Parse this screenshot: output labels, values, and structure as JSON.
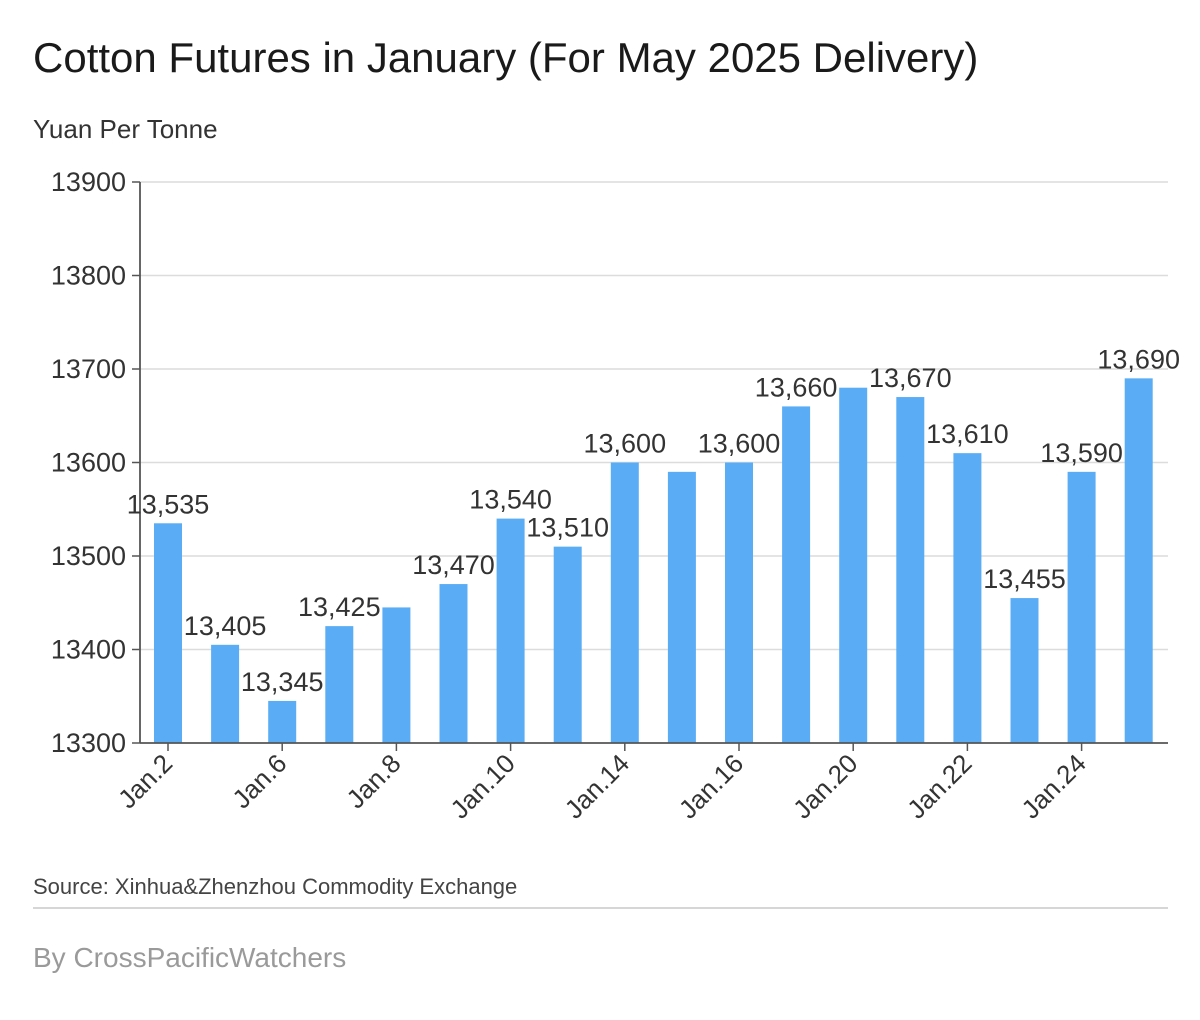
{
  "header": {
    "title": "Cotton Futures in January (For May 2025 Delivery)"
  },
  "footer": {
    "source": "Source: Xinhua&Zhenzhou Commodity Exchange",
    "byline": "By CrossPacificWatchers"
  },
  "colors": {
    "bar": "#5aadf5",
    "grid": "#dcdcdc",
    "axis": "#555555",
    "text": "#333333"
  },
  "chart_data": {
    "type": "bar",
    "title": "Cotton Futures in January (For May 2025 Delivery)",
    "ylabel": "Yuan Per Tonne",
    "ylim": [
      13300,
      13900
    ],
    "yticks": [
      13300,
      13400,
      13500,
      13600,
      13700,
      13800,
      13900
    ],
    "grid": true,
    "categories": [
      "Jan.2",
      "",
      "Jan.6",
      "",
      "Jan.8",
      "",
      "Jan.10",
      "",
      "Jan.14",
      "",
      "Jan.16",
      "",
      "Jan.20",
      "",
      "Jan.22",
      "",
      "Jan.24",
      ""
    ],
    "values": [
      13535,
      13405,
      13345,
      13425,
      13445,
      13470,
      13540,
      13510,
      13600,
      13590,
      13600,
      13660,
      13680,
      13670,
      13610,
      13455,
      13590,
      13690
    ],
    "data_labels": [
      "13,535",
      "13,405",
      "13,345",
      "13,425",
      "",
      "13,470",
      "13,540",
      "13,510",
      "13,600",
      "",
      "13,600",
      "13,660",
      "",
      "13,670",
      "13,610",
      "13,455",
      "13,590",
      "13,690"
    ]
  }
}
